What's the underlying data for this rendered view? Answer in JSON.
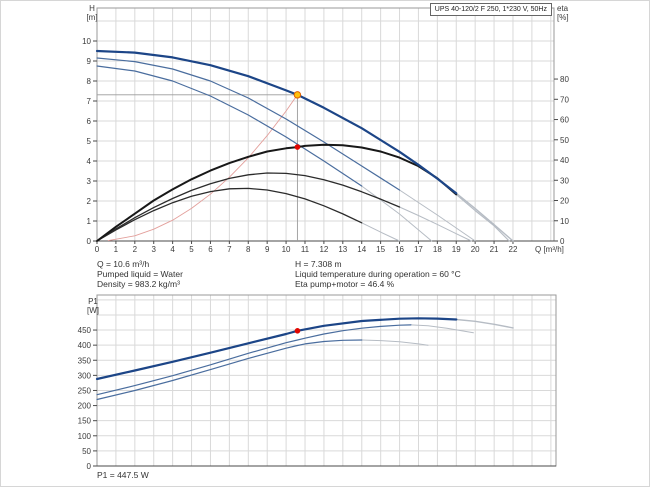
{
  "title_box": {
    "label": "UPS 40-120/2 F 250, 1*230 V, 50Hz"
  },
  "axes": {
    "h": "H",
    "h_unit": "[m]",
    "eta": "eta",
    "eta_unit": "[%]",
    "p1": "P1",
    "p1_unit": "[W]",
    "q": "Q [m³/h]"
  },
  "info_panel": {
    "q": "Q = 10.6 m³/h",
    "pumped_liquid": "Pumped liquid = Water",
    "density": "Density = 983.2 kg/m³",
    "h": "H = 7.308 m",
    "liquid_temp": "Liquid temperature during operation = 60 °C",
    "eta_pump_motor": "Eta pump+motor = 46.4 %"
  },
  "footer": {
    "p1": "P1 = 447.5 W"
  },
  "colors": {
    "grid": "#d9d9d9",
    "border": "#9a9a9a",
    "axis": "#4a4a4a",
    "tick_text": "#3a3a3a",
    "guide": "#9b9b9b",
    "fade": "#b6bcc4",
    "curve_main_blue": "#1c4587",
    "curve_thin_blue": "#4a6d9e",
    "curve_black": "#181818",
    "system_curve_red": "#e39f9b",
    "duty_orange": "#ffc20e",
    "duty_orange_ring": "#e06000",
    "duty_red": "#e10600"
  },
  "operating_point": {
    "q_m3h": 10.6,
    "h_m": 7.308,
    "eta_pct": 46.4,
    "p1_w": 447.5
  },
  "chart_data": [
    {
      "name": "hq-eta-chart",
      "type": "line",
      "title": "UPS 40-120/2 F 250, 1*230 V, 50Hz",
      "xlabel": "Q [m³/h]",
      "ylabel_left": "H [m]",
      "ylabel_right": "eta [%]",
      "xlim": [
        0,
        24.17
      ],
      "ylim_left": [
        0,
        11.65
      ],
      "ylim_right": [
        0,
        115.1
      ],
      "x_grid_step": 1,
      "y_grid_step": 1,
      "x_ticks": [
        0,
        1,
        2,
        3,
        4,
        5,
        6,
        7,
        8,
        9,
        10,
        11,
        12,
        13,
        14,
        15,
        16,
        17,
        18,
        19,
        20,
        21,
        22
      ],
      "y_ticks_left": [
        0,
        1,
        2,
        3,
        4,
        5,
        6,
        7,
        8,
        9,
        10
      ],
      "y_ticks_right": [
        0,
        10,
        20,
        30,
        40,
        50,
        60,
        70,
        80
      ],
      "guides": [
        {
          "name": "duty-h-line",
          "x1": 0,
          "y1": 7.308,
          "x2": 10.6,
          "y2": 7.308,
          "axis": "left"
        },
        {
          "name": "duty-q-line",
          "x1": 10.6,
          "y1": 0,
          "x2": 10.6,
          "y2": 7.308,
          "axis": "left"
        }
      ],
      "series": [
        {
          "name": "system-curve",
          "axis": "left",
          "color": "#e39f9b",
          "width": 0.9,
          "points": [
            [
              0.6,
              0.02
            ],
            [
              2,
              0.26
            ],
            [
              3,
              0.59
            ],
            [
              4,
              1.04
            ],
            [
              5,
              1.63
            ],
            [
              6,
              2.34
            ],
            [
              7,
              3.19
            ],
            [
              8,
              4.16
            ],
            [
              9,
              5.27
            ],
            [
              10,
              6.5
            ],
            [
              10.6,
              7.308
            ]
          ]
        },
        {
          "name": "hq-curve-speed1",
          "axis": "left",
          "color": "#4a6d9e",
          "width": 1.2,
          "points": [
            [
              0,
              8.75
            ],
            [
              2,
              8.5
            ],
            [
              4,
              8.0
            ],
            [
              6,
              7.25
            ],
            [
              8,
              6.3
            ],
            [
              10,
              5.2
            ],
            [
              12,
              4.0
            ],
            [
              14,
              2.75
            ]
          ],
          "fade": [
            [
              14,
              2.75
            ],
            [
              16,
              1.35
            ],
            [
              17.7,
              0
            ]
          ]
        },
        {
          "name": "hq-curve-speed2",
          "axis": "left",
          "color": "#4a6d9e",
          "width": 1.2,
          "points": [
            [
              0,
              9.15
            ],
            [
              2,
              8.97
            ],
            [
              4,
              8.6
            ],
            [
              6,
              8.0
            ],
            [
              8,
              7.15
            ],
            [
              10,
              6.1
            ],
            [
              12,
              4.95
            ],
            [
              14,
              3.75
            ],
            [
              16,
              2.55
            ]
          ],
          "fade": [
            [
              16,
              2.55
            ],
            [
              18,
              1.3
            ],
            [
              20,
              0
            ]
          ]
        },
        {
          "name": "eta-curve-speed1",
          "axis": "right",
          "color": "#2b2b2b",
          "width": 1.3,
          "points": [
            [
              0,
              0
            ],
            [
              1,
              5.5
            ],
            [
              2,
              10.5
            ],
            [
              3,
              15
            ],
            [
              4,
              18.9
            ],
            [
              5,
              22.1
            ],
            [
              6,
              24.4
            ],
            [
              7,
              25.8
            ],
            [
              8,
              26
            ],
            [
              9,
              25.2
            ],
            [
              10,
              23.4
            ],
            [
              11,
              20.8
            ],
            [
              12,
              17.4
            ],
            [
              13,
              13.4
            ],
            [
              14,
              9
            ]
          ],
          "fade": [
            [
              14,
              9
            ],
            [
              15,
              4.4
            ],
            [
              16,
              0
            ]
          ]
        },
        {
          "name": "eta-curve-speed2",
          "axis": "right",
          "color": "#2b2b2b",
          "width": 1.3,
          "points": [
            [
              0,
              0
            ],
            [
              1,
              6
            ],
            [
              2,
              11.5
            ],
            [
              3,
              16.5
            ],
            [
              4,
              21
            ],
            [
              5,
              25
            ],
            [
              6,
              28.3
            ],
            [
              7,
              30.9
            ],
            [
              8,
              32.7
            ],
            [
              9,
              33.6
            ],
            [
              10,
              33.4
            ],
            [
              11,
              32.3
            ],
            [
              12,
              30.3
            ],
            [
              13,
              27.6
            ],
            [
              14,
              24.3
            ],
            [
              15,
              20.7
            ],
            [
              16,
              16.8
            ]
          ],
          "fade": [
            [
              16,
              16.8
            ],
            [
              17,
              12.6
            ],
            [
              18,
              8.2
            ],
            [
              19,
              3.6
            ],
            [
              19.8,
              0
            ]
          ]
        },
        {
          "name": "eta-curve-speed3",
          "axis": "right",
          "color": "#181818",
          "width": 2,
          "points": [
            [
              0,
              0
            ],
            [
              1,
              7
            ],
            [
              2,
              13.5
            ],
            [
              3,
              20
            ],
            [
              4,
              25.5
            ],
            [
              5,
              30.5
            ],
            [
              6,
              34.8
            ],
            [
              7,
              38.5
            ],
            [
              8,
              41.6
            ],
            [
              9,
              44.2
            ],
            [
              10,
              45.8
            ],
            [
              10.6,
              46.4
            ],
            [
              11,
              47
            ],
            [
              12,
              47.5
            ],
            [
              13,
              47.3
            ],
            [
              14,
              46.2
            ],
            [
              15,
              44.2
            ],
            [
              16,
              41.2
            ],
            [
              17,
              37
            ],
            [
              18,
              31
            ],
            [
              19,
              23
            ]
          ],
          "fade": [
            [
              19,
              23
            ],
            [
              20,
              15
            ],
            [
              21,
              7.5
            ],
            [
              21.8,
              0
            ]
          ]
        },
        {
          "name": "hq-curve-speed3",
          "axis": "left",
          "color": "#1c4587",
          "width": 2.2,
          "points": [
            [
              0,
              9.5
            ],
            [
              2,
              9.42
            ],
            [
              4,
              9.18
            ],
            [
              6,
              8.79
            ],
            [
              8,
              8.24
            ],
            [
              10,
              7.53
            ],
            [
              10.6,
              7.308
            ],
            [
              12,
              6.66
            ],
            [
              14,
              5.64
            ],
            [
              16,
              4.46
            ],
            [
              17,
              3.81
            ],
            [
              18,
              3.12
            ],
            [
              19,
              2.39
            ]
          ],
          "fade": [
            [
              19,
              2.39
            ],
            [
              20,
              1.62
            ],
            [
              21,
              0.82
            ],
            [
              22,
              0
            ]
          ]
        }
      ],
      "markers": [
        {
          "name": "duty-point-eta",
          "x": 10.6,
          "y": 46.4,
          "axis": "right",
          "r": 2.8,
          "fill": "#e10600"
        },
        {
          "name": "duty-point-h",
          "x": 10.6,
          "y": 7.308,
          "axis": "left",
          "r": 3.2,
          "fill": "#ffc20e",
          "stroke": "#e06000"
        }
      ]
    },
    {
      "name": "p1-chart",
      "type": "line",
      "title": "",
      "xlabel": "",
      "ylabel_left": "P1 [W]",
      "xlim": [
        0,
        24.27
      ],
      "ylim_left": [
        0,
        566
      ],
      "x_grid_step": 1,
      "y_grid_step": 50,
      "x_ticks": [],
      "y_ticks_left": [
        0,
        50,
        100,
        150,
        200,
        250,
        300,
        350,
        400,
        450
      ],
      "guides": [],
      "series": [
        {
          "name": "p1-curve-speed1",
          "axis": "left",
          "color": "#4a6d9e",
          "width": 1.2,
          "points": [
            [
              0,
              220
            ],
            [
              2,
              250
            ],
            [
              4,
              283
            ],
            [
              6,
              319
            ],
            [
              8,
              356
            ],
            [
              10,
              390
            ],
            [
              10.6,
              399
            ],
            [
              11,
              404
            ],
            [
              12,
              412
            ],
            [
              13,
              416
            ],
            [
              14,
              417
            ]
          ],
          "fade": [
            [
              14,
              417
            ],
            [
              15,
              415
            ],
            [
              16,
              411
            ],
            [
              17,
              404
            ],
            [
              17.5,
              400
            ]
          ]
        },
        {
          "name": "p1-curve-speed2",
          "axis": "left",
          "color": "#4a6d9e",
          "width": 1.2,
          "points": [
            [
              0,
              236
            ],
            [
              2,
              266
            ],
            [
              4,
              299
            ],
            [
              6,
              335
            ],
            [
              8,
              373
            ],
            [
              10,
              408
            ],
            [
              10.6,
              417
            ],
            [
              11,
              423
            ],
            [
              12,
              437
            ],
            [
              13,
              448
            ],
            [
              14,
              456
            ],
            [
              15,
              462
            ],
            [
              16,
              466
            ],
            [
              16.6,
              467
            ]
          ],
          "fade": [
            [
              16.6,
              467
            ],
            [
              17.5,
              464
            ],
            [
              18.5,
              456
            ],
            [
              19.9,
              441
            ]
          ]
        },
        {
          "name": "p1-curve-speed3",
          "axis": "left",
          "color": "#1c4587",
          "width": 2.2,
          "points": [
            [
              0,
              288
            ],
            [
              2,
              316
            ],
            [
              4,
              345
            ],
            [
              6,
              375
            ],
            [
              8,
              406
            ],
            [
              10,
              437
            ],
            [
              10.6,
              447.5
            ],
            [
              12,
              464
            ],
            [
              14,
              480
            ],
            [
              16,
              487.5
            ],
            [
              17,
              489
            ],
            [
              18,
              488
            ],
            [
              19,
              485
            ]
          ],
          "fade": [
            [
              19,
              485
            ],
            [
              20,
              479
            ],
            [
              21,
              469
            ],
            [
              22,
              457
            ]
          ]
        }
      ],
      "markers": [
        {
          "name": "duty-point-p1",
          "x": 10.6,
          "y": 447.5,
          "axis": "left",
          "r": 2.8,
          "fill": "#e10600"
        }
      ]
    }
  ]
}
